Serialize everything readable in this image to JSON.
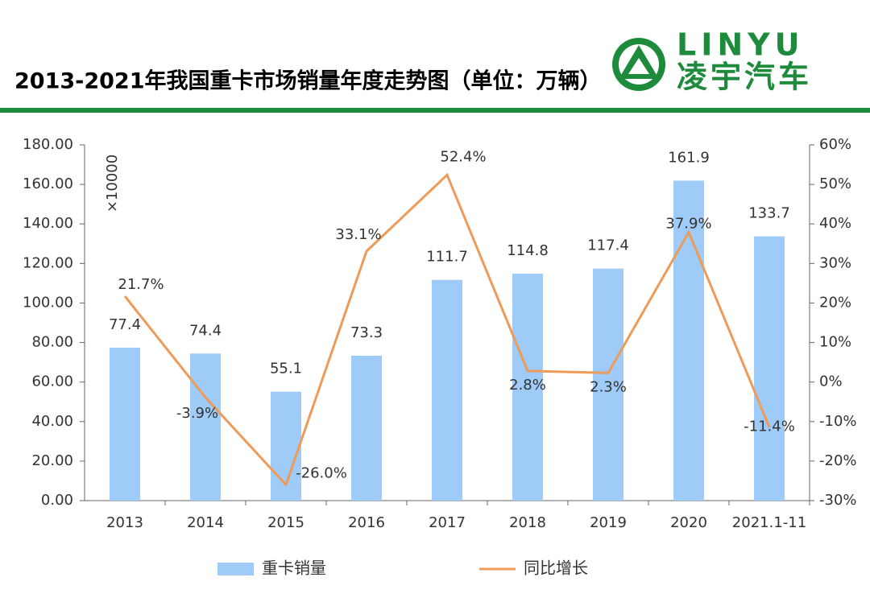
{
  "logo": {
    "en": "LINYU",
    "cn": "凌宇汽车"
  },
  "chart_data": {
    "type": "combo",
    "title": "2013-2021年我国重卡市场销量年度走势图（单位：万辆）",
    "y_unit_label": "×10000",
    "categories": [
      "2013",
      "2014",
      "2015",
      "2016",
      "2017",
      "2018",
      "2019",
      "2020",
      "2021.1-11"
    ],
    "series": [
      {
        "name": "重卡销量",
        "type": "bar",
        "color": "#9ecbf7",
        "axis": "y",
        "values": [
          77.4,
          74.4,
          55.1,
          73.3,
          111.7,
          114.8,
          117.4,
          161.9,
          133.7
        ]
      },
      {
        "name": "同比增长",
        "type": "line",
        "color": "#ee9a58",
        "axis": "y2",
        "values": [
          21.7,
          -3.9,
          -26.0,
          33.1,
          52.4,
          2.8,
          2.3,
          37.9,
          -11.4
        ],
        "value_labels": [
          "21.7%",
          "-3.9%",
          "-26.0%",
          "33.1%",
          "52.4%",
          "2.8%",
          "2.3%",
          "37.9%",
          "-11.4%"
        ]
      }
    ],
    "ylim": [
      0,
      180
    ],
    "yticks": [
      {
        "value": 0,
        "label": "0.00"
      },
      {
        "value": 20,
        "label": "20.00"
      },
      {
        "value": 40,
        "label": "40.00"
      },
      {
        "value": 60,
        "label": "60.00"
      },
      {
        "value": 80,
        "label": "80.00"
      },
      {
        "value": 100,
        "label": "100.00"
      },
      {
        "value": 120,
        "label": "120.00"
      },
      {
        "value": 140,
        "label": "140.00"
      },
      {
        "value": 160,
        "label": "160.00"
      },
      {
        "value": 180,
        "label": "180.00"
      }
    ],
    "y2lim": [
      -30,
      60
    ],
    "y2ticks": [
      {
        "value": -30,
        "label": "-30%"
      },
      {
        "value": -20,
        "label": "-20%"
      },
      {
        "value": -10,
        "label": "-10%"
      },
      {
        "value": 0,
        "label": "0%"
      },
      {
        "value": 10,
        "label": "10%"
      },
      {
        "value": 20,
        "label": "20%"
      },
      {
        "value": 30,
        "label": "30%"
      },
      {
        "value": 40,
        "label": "40%"
      },
      {
        "value": 50,
        "label": "50%"
      },
      {
        "value": 60,
        "label": "60%"
      }
    ],
    "grid": false,
    "legend": "bottom"
  }
}
